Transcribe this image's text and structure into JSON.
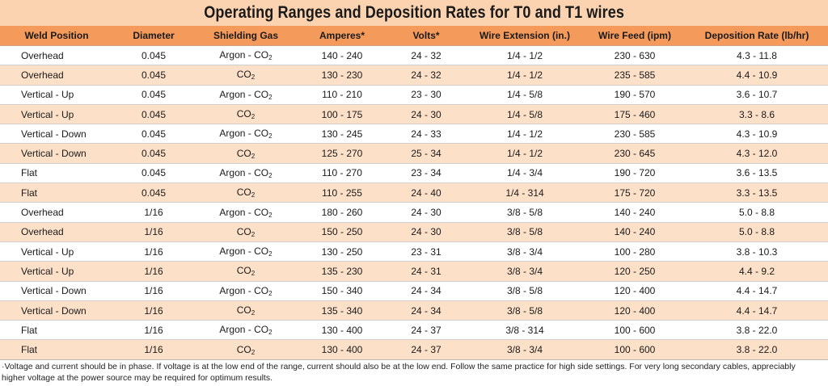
{
  "title": "Operating Ranges and Deposition Rates for T0 and T1 wires",
  "columns": [
    "Weld Position",
    "Diameter",
    "Shielding Gas",
    "Amperes*",
    "Volts*",
    "Wire Extension (in.)",
    "Wire Feed (ipm)",
    "Deposition Rate (lb/hr)"
  ],
  "rows": [
    {
      "position": "Overhead",
      "diameter": "0.045",
      "gas_prefix": "Argon - CO",
      "gas_sub": "2",
      "amperes": "140 - 240",
      "volts": "24 - 32",
      "extension": "1/4 - 1/2",
      "feed": "230 - 630",
      "rate": "4.3 - 11.8"
    },
    {
      "position": "Overhead",
      "diameter": "0.045",
      "gas_prefix": "CO",
      "gas_sub": "2",
      "amperes": "130 - 230",
      "volts": "24 - 32",
      "extension": "1/4 - 1/2",
      "feed": "235 - 585",
      "rate": "4.4 - 10.9"
    },
    {
      "position": "Vertical - Up",
      "diameter": "0.045",
      "gas_prefix": "Argon - CO",
      "gas_sub": "2",
      "amperes": "110 - 210",
      "volts": "23 - 30",
      "extension": "1/4 - 5/8",
      "feed": "190 - 570",
      "rate": "3.6 - 10.7"
    },
    {
      "position": "Vertical - Up",
      "diameter": "0.045",
      "gas_prefix": "CO",
      "gas_sub": "2",
      "amperes": "100 - 175",
      "volts": "24 - 30",
      "extension": "1/4 - 5/8",
      "feed": "175 - 460",
      "rate": "3.3 - 8.6"
    },
    {
      "position": "Vertical - Down",
      "diameter": "0.045",
      "gas_prefix": "Argon - CO",
      "gas_sub": "2",
      "amperes": "130 - 245",
      "volts": "24 - 33",
      "extension": "1/4 - 1/2",
      "feed": "230 - 585",
      "rate": "4.3 - 10.9"
    },
    {
      "position": "Vertical - Down",
      "diameter": "0.045",
      "gas_prefix": "CO",
      "gas_sub": "2",
      "amperes": "125 - 270",
      "volts": "25 - 34",
      "extension": "1/4 - 1/2",
      "feed": "230 - 645",
      "rate": "4.3 - 12.0"
    },
    {
      "position": "Flat",
      "diameter": "0.045",
      "gas_prefix": "Argon - CO",
      "gas_sub": "2",
      "amperes": "110 - 270",
      "volts": "23 - 34",
      "extension": "1/4 - 3/4",
      "feed": "190 - 720",
      "rate": "3.6 - 13.5"
    },
    {
      "position": "Flat",
      "diameter": "0.045",
      "gas_prefix": "CO",
      "gas_sub": "2",
      "amperes": "110 - 255",
      "volts": "24 - 40",
      "extension": "1/4 - 314",
      "feed": "175 - 720",
      "rate": "3.3 - 13.5"
    },
    {
      "position": "Overhead",
      "diameter": "1/16",
      "gas_prefix": "Argon - CO",
      "gas_sub": "2",
      "amperes": "180 - 260",
      "volts": "24 - 30",
      "extension": "3/8 - 5/8",
      "feed": "140 - 240",
      "rate": "5.0 - 8.8"
    },
    {
      "position": "Overhead",
      "diameter": "1/16",
      "gas_prefix": "CO",
      "gas_sub": "2",
      "amperes": "150 - 250",
      "volts": "24 - 30",
      "extension": "3/8 - 5/8",
      "feed": "140 - 240",
      "rate": "5.0 - 8.8"
    },
    {
      "position": "Vertical - Up",
      "diameter": "1/16",
      "gas_prefix": "Argon - CO",
      "gas_sub": "2",
      "amperes": "130 - 250",
      "volts": "23 - 31",
      "extension": "3/8 - 3/4",
      "feed": "100 - 280",
      "rate": "3.8 - 10.3"
    },
    {
      "position": "Vertical - Up",
      "diameter": "1/16",
      "gas_prefix": "CO",
      "gas_sub": "2",
      "amperes": "135 - 230",
      "volts": "24 - 31",
      "extension": "3/8 - 3/4",
      "feed": "120 - 250",
      "rate": "4.4 - 9.2"
    },
    {
      "position": "Vertical -  Down",
      "diameter": "1/16",
      "gas_prefix": "Argon - CO",
      "gas_sub": "2",
      "amperes": "150 - 340",
      "volts": "24 - 34",
      "extension": "3/8 - 5/8",
      "feed": "120 - 400",
      "rate": "4.4 - 14.7"
    },
    {
      "position": "Vertical - Down",
      "diameter": "1/16",
      "gas_prefix": "CO",
      "gas_sub": "2",
      "amperes": "135 - 340",
      "volts": "24 - 34",
      "extension": "3/8 - 5/8",
      "feed": "120 - 400",
      "rate": "4.4 - 14.7"
    },
    {
      "position": "Flat",
      "diameter": "1/16",
      "gas_prefix": "Argon - CO",
      "gas_sub": "2",
      "amperes": "130 - 400",
      "volts": "24 - 37",
      "extension": "3/8 - 314",
      "feed": "100 - 600",
      "rate": "3.8 - 22.0"
    },
    {
      "position": "Flat",
      "diameter": "1/16",
      "gas_prefix": "CO",
      "gas_sub": "2",
      "amperes": "130 - 400",
      "volts": "24 - 37",
      "extension": "3/8 - 3/4",
      "feed": "100 - 600",
      "rate": "3.8 - 22.0"
    }
  ],
  "footnote": {
    "line1": "·Voltage and current should be in phase. If voltage is at the low end of the range, current should also be at the low end. Follow the same practice for high side settings. For very long secondary cables, appreciably",
    "line2": "higher voltage at the power source may be required for optimum results."
  },
  "colors": {
    "title_bg": "#fbd3b0",
    "header_bg": "#f49a5a",
    "row_alt_bg": "#fde0c8",
    "row_bg": "#ffffff"
  }
}
